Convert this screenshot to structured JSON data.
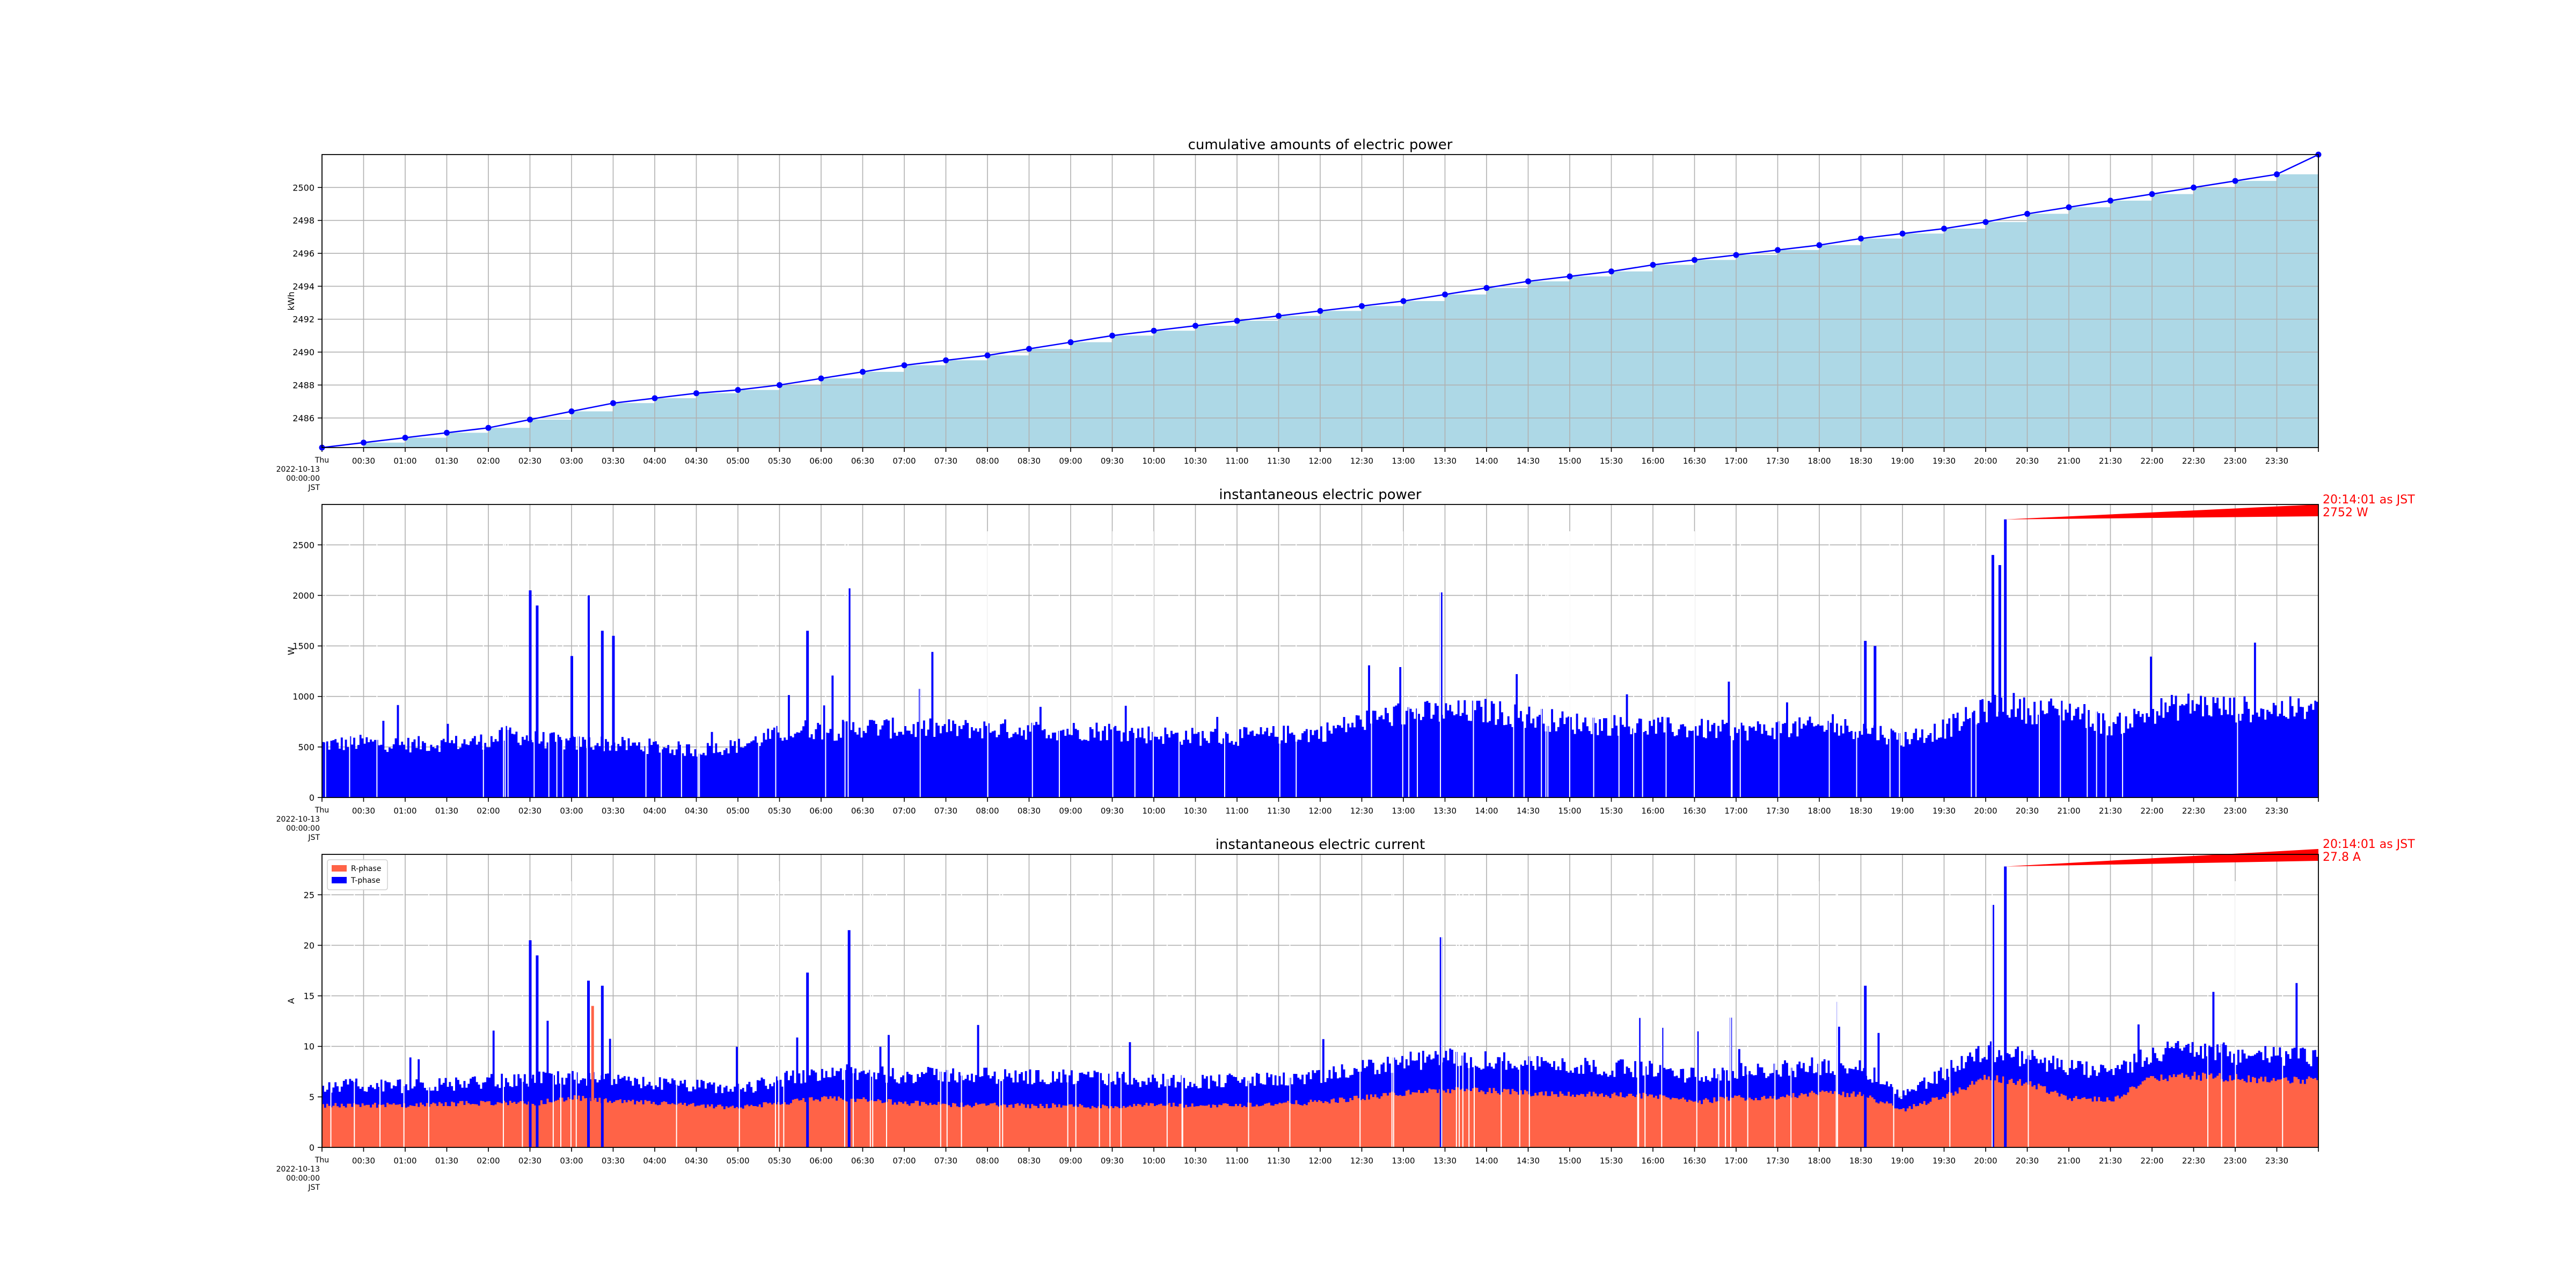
{
  "chart_data": [
    {
      "type": "area",
      "title": "cumulative amounts of electric power",
      "ylabel": "kWh",
      "xlim": [
        "00:00",
        "24:00"
      ],
      "ylim": [
        2484.2,
        2502.0
      ],
      "yticks": [
        2486,
        2488,
        2490,
        2492,
        2494,
        2496,
        2498,
        2500
      ],
      "grid": true,
      "fill_color": "#add8e6",
      "line_color": "#0000ff",
      "series": [
        {
          "x": [
            "00:00",
            "00:30",
            "01:00",
            "01:30",
            "02:00",
            "02:30",
            "03:00",
            "03:30",
            "04:00",
            "04:30",
            "05:00",
            "05:30",
            "06:00",
            "06:30",
            "07:00",
            "07:30",
            "08:00",
            "08:30",
            "09:00",
            "09:30",
            "10:00",
            "10:30",
            "11:00",
            "11:30",
            "12:00",
            "12:30",
            "13:00",
            "13:30",
            "14:00",
            "14:30",
            "15:00",
            "15:30",
            "16:00",
            "16:30",
            "17:00",
            "17:30",
            "18:00",
            "18:30",
            "19:00",
            "19:30",
            "20:00",
            "20:30",
            "21:00",
            "21:30",
            "22:00",
            "22:30",
            "23:00",
            "23:30"
          ],
          "values": [
            2484.2,
            2484.5,
            2484.8,
            2485.1,
            2485.4,
            2485.9,
            2486.4,
            2486.9,
            2487.2,
            2487.5,
            2487.7,
            2488.0,
            2488.4,
            2488.8,
            2489.2,
            2489.5,
            2489.8,
            2490.2,
            2490.6,
            2491.0,
            2491.3,
            2491.6,
            2491.9,
            2492.2,
            2492.5,
            2492.8,
            2493.1,
            2493.5,
            2493.9,
            2494.3,
            2494.6,
            2494.9,
            2495.3,
            2495.6,
            2495.9,
            2496.2,
            2496.5,
            2496.9,
            2497.2,
            2497.5,
            2497.9,
            2498.4,
            2498.8,
            2499.2,
            2499.6,
            2500.0,
            2500.4,
            2500.8
          ]
        }
      ],
      "end_point": {
        "x": "24:00",
        "y": 2502.0
      }
    },
    {
      "type": "bar",
      "title": "instantaneous electric power",
      "ylabel": "W",
      "xlim": [
        "00:00",
        "24:00"
      ],
      "ylim": [
        0,
        2900
      ],
      "yticks": [
        0,
        500,
        1000,
        1500,
        2000,
        2500
      ],
      "grid": true,
      "series": [
        {
          "name": "",
          "color": "#0000ff"
        }
      ],
      "profile": {
        "x": [
          "00:00",
          "00:30",
          "01:00",
          "01:30",
          "02:00",
          "02:15",
          "02:30",
          "02:45",
          "03:00",
          "03:15",
          "03:30",
          "04:00",
          "04:30",
          "05:00",
          "05:30",
          "05:50",
          "06:10",
          "06:30",
          "07:00",
          "07:30",
          "08:00",
          "08:30",
          "09:00",
          "09:30",
          "10:00",
          "10:30",
          "11:00",
          "11:30",
          "12:00",
          "12:30",
          "13:00",
          "13:30",
          "14:00",
          "14:30",
          "15:00",
          "15:30",
          "16:00",
          "16:30",
          "17:00",
          "17:30",
          "18:00",
          "18:30",
          "19:00",
          "19:30",
          "20:00",
          "20:14",
          "20:30",
          "21:00",
          "21:30",
          "22:00",
          "22:30",
          "23:00",
          "23:30",
          "24:00"
        ],
        "values": [
          540,
          560,
          540,
          550,
          580,
          650,
          600,
          580,
          550,
          560,
          540,
          520,
          480,
          530,
          650,
          700,
          680,
          720,
          700,
          700,
          700,
          690,
          680,
          680,
          640,
          620,
          620,
          640,
          660,
          780,
          860,
          860,
          880,
          820,
          760,
          740,
          720,
          700,
          680,
          700,
          720,
          700,
          600,
          700,
          900,
          960,
          880,
          900,
          720,
          880,
          950,
          900,
          900,
          880
        ]
      },
      "peaks": [
        {
          "x": "02:30",
          "y": 2050
        },
        {
          "x": "02:35",
          "y": 1900
        },
        {
          "x": "03:12",
          "y": 2000
        },
        {
          "x": "03:22",
          "y": 1650
        },
        {
          "x": "03:30",
          "y": 1600
        },
        {
          "x": "03:00",
          "y": 1400
        },
        {
          "x": "05:50",
          "y": 1650
        },
        {
          "x": "06:20",
          "y": 2070
        },
        {
          "x": "13:27",
          "y": 2030
        },
        {
          "x": "18:33",
          "y": 1550
        },
        {
          "x": "18:40",
          "y": 1500
        },
        {
          "x": "20:05",
          "y": 2400
        },
        {
          "x": "20:10",
          "y": 2300
        },
        {
          "x": "20:14",
          "y": 2752
        }
      ],
      "annotation": {
        "x": "20:14",
        "y": 2752,
        "line1": "20:14:01 as JST",
        "line2": "2752 W"
      }
    },
    {
      "type": "area",
      "title": "instantaneous electric current",
      "ylabel": "A",
      "xlim": [
        "00:00",
        "24:00"
      ],
      "ylim": [
        0,
        29.0
      ],
      "yticks": [
        0,
        5,
        10,
        15,
        20,
        25
      ],
      "grid": true,
      "legend_position": "top-left",
      "series": [
        {
          "name": "R-phase",
          "color": "#ff6347",
          "x": [
            "00:00",
            "00:30",
            "01:00",
            "01:30",
            "02:00",
            "02:30",
            "03:00",
            "03:30",
            "04:00",
            "04:30",
            "05:00",
            "05:30",
            "06:00",
            "06:30",
            "07:00",
            "07:30",
            "08:00",
            "08:30",
            "09:00",
            "09:30",
            "10:00",
            "10:30",
            "11:00",
            "11:30",
            "12:00",
            "12:30",
            "13:00",
            "13:30",
            "14:00",
            "14:30",
            "15:00",
            "15:30",
            "16:00",
            "16:30",
            "17:00",
            "17:30",
            "18:00",
            "18:30",
            "19:00",
            "19:30",
            "20:00",
            "20:30",
            "21:00",
            "21:30",
            "22:00",
            "22:30",
            "23:00",
            "23:30",
            "24:00"
          ],
          "values": [
            4.2,
            4.3,
            4.2,
            4.4,
            4.5,
            4.4,
            5.0,
            4.6,
            4.5,
            4.2,
            4.0,
            4.5,
            4.9,
            4.8,
            4.5,
            4.3,
            4.3,
            4.2,
            4.2,
            4.1,
            4.3,
            4.2,
            4.3,
            4.4,
            4.6,
            5.0,
            5.5,
            5.8,
            5.7,
            5.5,
            5.4,
            5.3,
            5.2,
            4.6,
            5.0,
            5.1,
            5.5,
            5.3,
            3.8,
            5.2,
            7.0,
            6.5,
            5.0,
            4.8,
            7.0,
            7.2,
            7.0,
            6.8,
            6.8
          ]
        },
        {
          "name": "T-phase",
          "color": "#0000ff",
          "x": [
            "00:00",
            "00:30",
            "01:00",
            "01:30",
            "02:00",
            "02:30",
            "03:00",
            "03:30",
            "04:00",
            "04:30",
            "05:00",
            "05:30",
            "06:00",
            "06:30",
            "07:00",
            "07:30",
            "08:00",
            "08:30",
            "09:00",
            "09:30",
            "10:00",
            "10:30",
            "11:00",
            "11:30",
            "12:00",
            "12:30",
            "13:00",
            "13:30",
            "14:00",
            "14:30",
            "15:00",
            "15:30",
            "16:00",
            "16:30",
            "17:00",
            "17:30",
            "18:00",
            "18:30",
            "19:00",
            "19:30",
            "20:00",
            "20:30",
            "21:00",
            "21:30",
            "22:00",
            "22:30",
            "23:00",
            "23:30",
            "24:00"
          ],
          "values": [
            6.3,
            6.4,
            6.3,
            6.5,
            6.8,
            7.0,
            7.2,
            6.8,
            6.6,
            6.3,
            6.0,
            7.0,
            7.8,
            7.6,
            7.4,
            7.5,
            7.4,
            7.3,
            7.2,
            7.1,
            6.9,
            6.8,
            6.9,
            7.0,
            7.2,
            8.2,
            8.8,
            9.2,
            9.0,
            8.7,
            8.4,
            8.2,
            8.0,
            7.4,
            7.8,
            8.0,
            8.4,
            8.2,
            5.5,
            7.8,
            10.0,
            9.2,
            8.2,
            7.6,
            9.8,
            10.2,
            9.6,
            9.4,
            9.3
          ]
        }
      ],
      "peaks": [
        {
          "x": "02:30",
          "y": 20.5,
          "series": "T-phase"
        },
        {
          "x": "02:35",
          "y": 19.0,
          "series": "T-phase"
        },
        {
          "x": "03:12",
          "y": 16.5,
          "series": "T-phase"
        },
        {
          "x": "03:15",
          "y": 14.0,
          "series": "R-phase"
        },
        {
          "x": "03:22",
          "y": 16.0,
          "series": "T-phase"
        },
        {
          "x": "05:50",
          "y": 17.3,
          "series": "T-phase"
        },
        {
          "x": "06:20",
          "y": 21.5,
          "series": "T-phase"
        },
        {
          "x": "13:27",
          "y": 20.8,
          "series": "T-phase"
        },
        {
          "x": "18:33",
          "y": 16.0,
          "series": "T-phase"
        },
        {
          "x": "20:05",
          "y": 24.0,
          "series": "T-phase"
        },
        {
          "x": "20:14",
          "y": 27.8,
          "series": "T-phase"
        }
      ],
      "annotation": {
        "x": "20:14",
        "y": 27.8,
        "line1": "20:14:01 as JST",
        "line2": "27.8 A"
      }
    }
  ],
  "x_tick_labels": [
    "00:30",
    "01:00",
    "01:30",
    "02:00",
    "02:30",
    "03:00",
    "03:30",
    "04:00",
    "04:30",
    "05:00",
    "05:30",
    "06:00",
    "06:30",
    "07:00",
    "07:30",
    "08:00",
    "08:30",
    "09:00",
    "09:30",
    "10:00",
    "10:30",
    "11:00",
    "11:30",
    "12:00",
    "12:30",
    "13:00",
    "13:30",
    "14:00",
    "14:30",
    "15:00",
    "15:30",
    "16:00",
    "16:30",
    "17:00",
    "17:30",
    "18:00",
    "18:30",
    "19:00",
    "19:30",
    "20:00",
    "20:30",
    "21:00",
    "21:30",
    "22:00",
    "22:30",
    "23:00",
    "23:30"
  ],
  "x_first_label": [
    "Thu",
    "2022-10-13",
    "00:00:00",
    "JST"
  ]
}
